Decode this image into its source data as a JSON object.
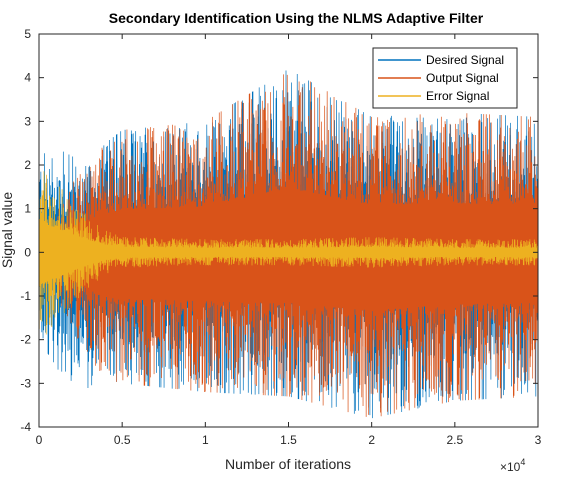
{
  "chart_data": {
    "type": "line",
    "title": "Secondary Identification Using the NLMS Adaptive Filter",
    "xlabel": "Number of iterations",
    "ylabel": "Signal value",
    "x_exponent_label": "×10",
    "x_exponent_power": "4",
    "xlim": [
      0,
      30000
    ],
    "ylim": [
      -4,
      5
    ],
    "x_ticks": [
      0,
      5000,
      10000,
      15000,
      20000,
      25000,
      30000
    ],
    "x_tick_labels": [
      "0",
      "0.5",
      "1",
      "1.5",
      "2",
      "2.5",
      "3"
    ],
    "y_ticks": [
      -4,
      -3,
      -2,
      -1,
      0,
      1,
      2,
      3,
      4,
      5
    ],
    "y_tick_labels": [
      "-4",
      "-3",
      "-2",
      "-1",
      "0",
      "1",
      "2",
      "3",
      "4",
      "5"
    ],
    "grid": false,
    "legend_position": "top-right",
    "series": [
      {
        "name": "Desired Signal",
        "color": "#0072BD",
        "envelope": {
          "x": [
            0,
            1000,
            2000,
            3000,
            4000,
            5000,
            10000,
            15000,
            20000,
            25000,
            30000
          ],
          "max": [
            2.3,
            2.4,
            2.2,
            2.0,
            2.5,
            2.8,
            3.0,
            4.2,
            3.1,
            3.2,
            3.1
          ],
          "min": [
            -2.0,
            -2.6,
            -3.2,
            -3.1,
            -2.9,
            -3.0,
            -3.2,
            -3.3,
            -3.8,
            -3.4,
            -3.3
          ]
        }
      },
      {
        "name": "Output Signal",
        "color": "#D95319",
        "envelope": {
          "x": [
            0,
            1000,
            2000,
            3000,
            4000,
            5000,
            10000,
            15000,
            20000,
            25000,
            30000
          ],
          "max": [
            0.2,
            0.9,
            1.6,
            2.0,
            2.5,
            2.8,
            3.0,
            4.2,
            3.1,
            3.2,
            3.1
          ],
          "min": [
            -0.2,
            -0.9,
            -1.8,
            -2.4,
            -2.9,
            -3.0,
            -3.2,
            -3.3,
            -3.8,
            -3.4,
            -3.3
          ]
        }
      },
      {
        "name": "Error Signal",
        "color": "#EDB120",
        "envelope": {
          "x": [
            0,
            500,
            1000,
            2000,
            3000,
            4000,
            5000,
            10000,
            15000,
            20000,
            25000,
            30000
          ],
          "max": [
            2.0,
            1.8,
            1.6,
            1.2,
            0.8,
            0.5,
            0.35,
            0.3,
            0.3,
            0.35,
            0.3,
            0.3
          ],
          "min": [
            -2.0,
            -1.9,
            -1.6,
            -1.2,
            -0.8,
            -0.5,
            -0.35,
            -0.3,
            -0.3,
            -0.35,
            -0.3,
            -0.3
          ]
        }
      }
    ]
  }
}
